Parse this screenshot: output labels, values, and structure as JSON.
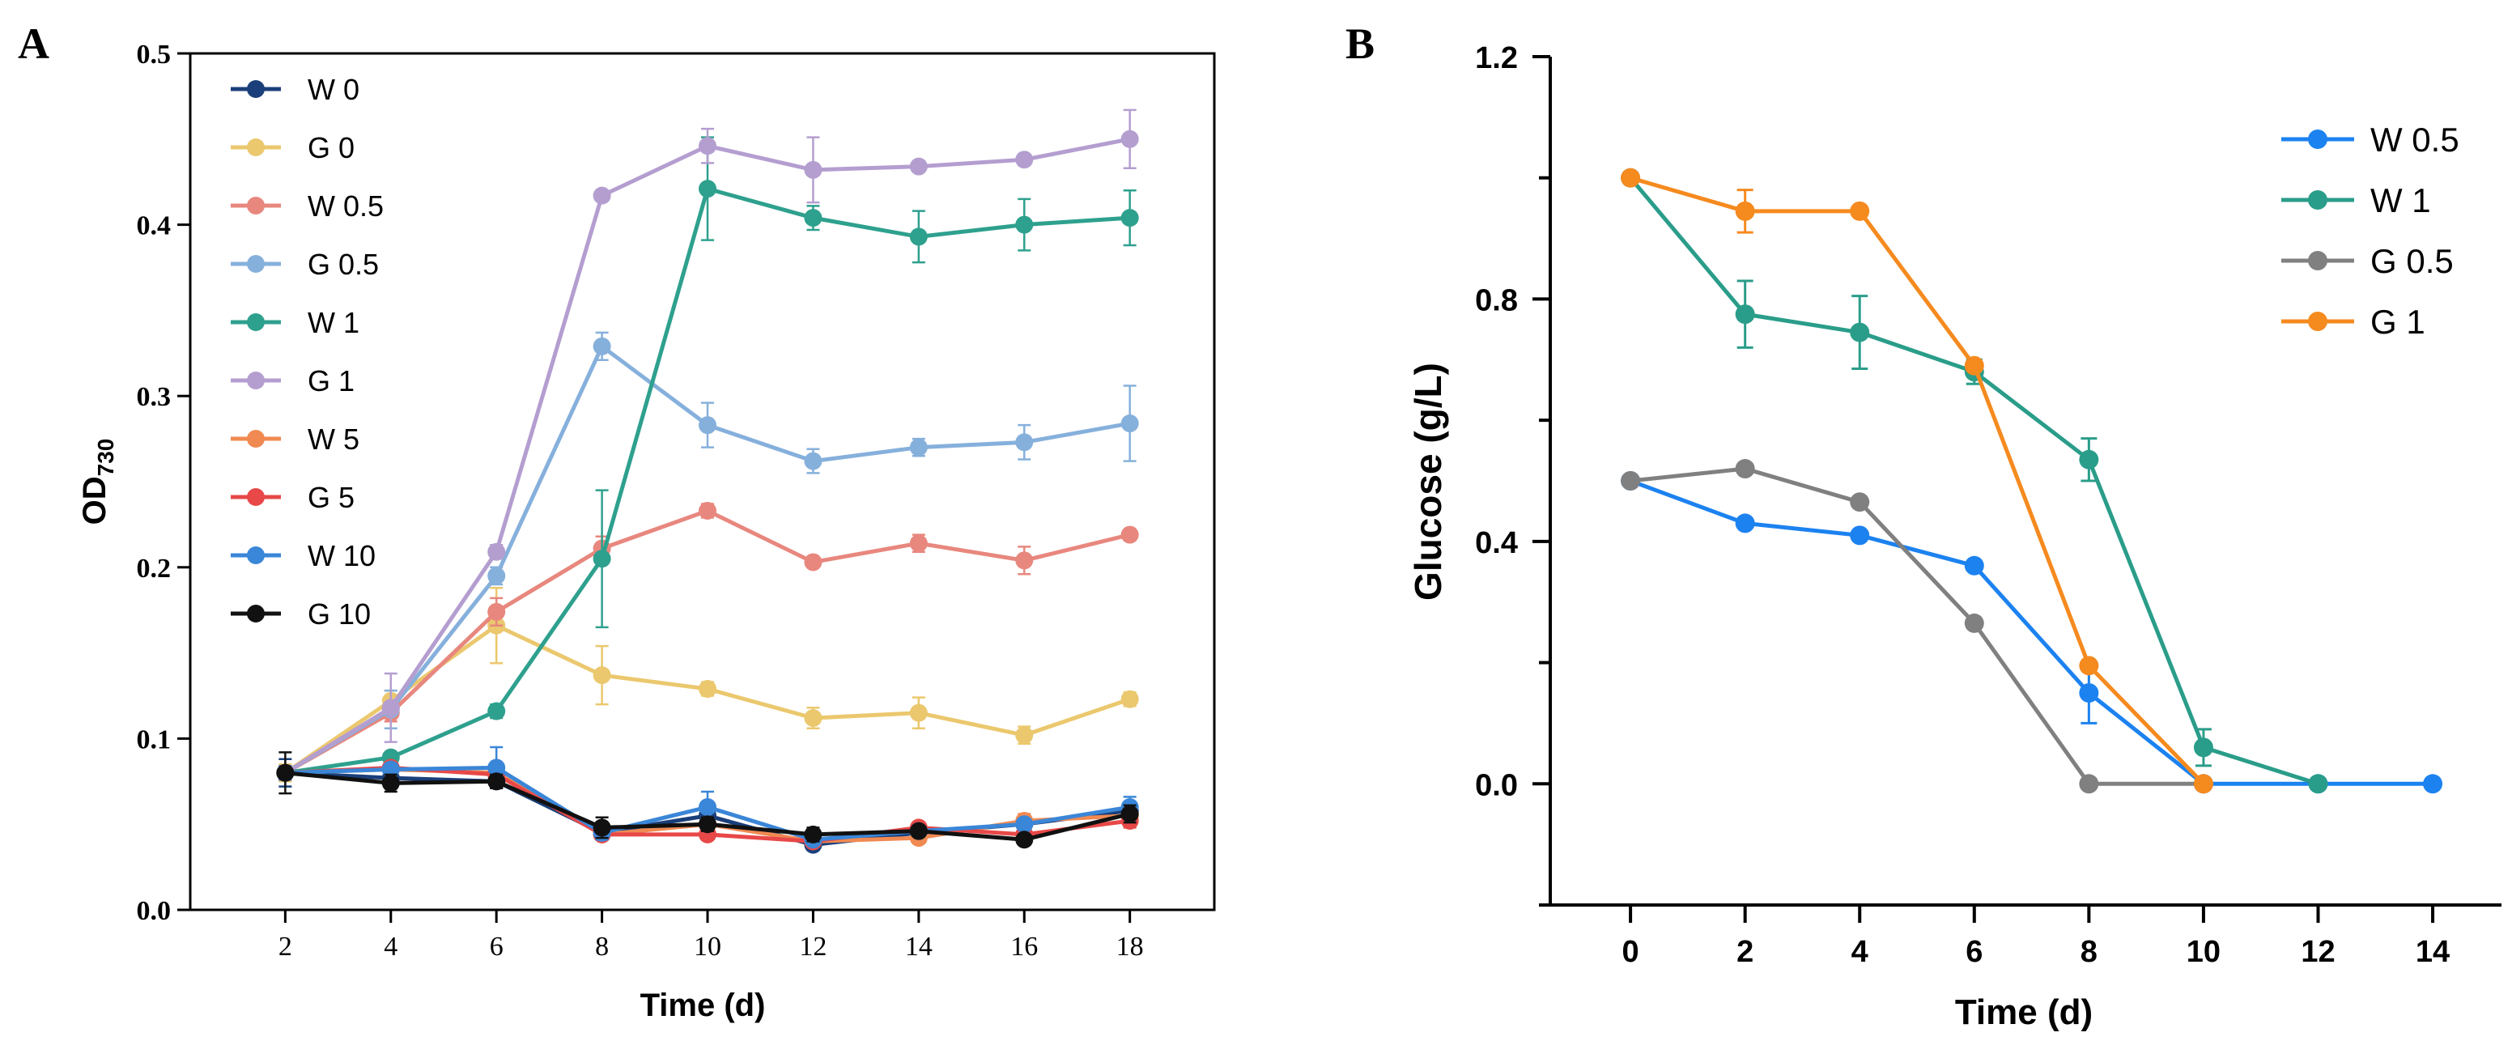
{
  "panels": [
    {
      "label": "A"
    },
    {
      "label": "B"
    }
  ],
  "chart_data": [
    {
      "type": "line",
      "panel": "A",
      "xlabel": "Time (d)",
      "ylabel": "OD",
      "ylabel_subscript": "730",
      "x": [
        2,
        4,
        6,
        8,
        10,
        12,
        14,
        16,
        18
      ],
      "xlim": [
        0.2,
        19.6
      ],
      "ylim": [
        0,
        0.5
      ],
      "xticks": [
        "2",
        "4",
        "6",
        "8",
        "10",
        "12",
        "14",
        "16",
        "18"
      ],
      "yticks": [
        "0.0",
        "0.1",
        "0.2",
        "0.3",
        "0.4",
        "0.5"
      ],
      "ytick_values": [
        0,
        0.1,
        0.2,
        0.3,
        0.4,
        0.5
      ],
      "legend_position": "top-left",
      "series": [
        {
          "name": "W 0",
          "color": "#1a3f7a",
          "values": [
            0.08,
            0.077,
            0.075,
            0.045,
            0.055,
            0.038,
            0.045,
            0.05,
            0.058
          ],
          "errors": [
            0.008,
            0.005,
            0.004,
            0.004,
            0.004,
            0.003,
            0.003,
            0.003,
            0.004
          ]
        },
        {
          "name": "G 0",
          "color": "#ebc86e",
          "values": [
            0.08,
            0.122,
            0.166,
            0.137,
            0.129,
            0.112,
            0.115,
            0.102,
            0.123
          ],
          "errors": [
            0.005,
            0.006,
            0.022,
            0.017,
            0.004,
            0.006,
            0.009,
            0.005,
            0.004
          ]
        },
        {
          "name": "W 0.5",
          "color": "#e8877e",
          "values": [
            0.08,
            0.115,
            0.174,
            0.211,
            0.233,
            0.203,
            0.214,
            0.204,
            0.219
          ],
          "errors": [
            0.004,
            0.005,
            0.008,
            0.007,
            0.004,
            0.003,
            0.005,
            0.008,
            0.003
          ]
        },
        {
          "name": "G 0.5",
          "color": "#86b0dc",
          "values": [
            0.08,
            0.117,
            0.195,
            0.329,
            0.283,
            0.262,
            0.27,
            0.273,
            0.284
          ],
          "errors": [
            0.004,
            0.011,
            0.005,
            0.008,
            0.013,
            0.007,
            0.005,
            0.01,
            0.022
          ]
        },
        {
          "name": "W 1",
          "color": "#2ea08e",
          "values": [
            0.08,
            0.089,
            0.116,
            0.205,
            0.421,
            0.404,
            0.393,
            0.4,
            0.404
          ],
          "errors": [
            0.004,
            0.003,
            0.004,
            0.04,
            0.03,
            0.007,
            0.015,
            0.015,
            0.016
          ]
        },
        {
          "name": "G 1",
          "color": "#b49ed0",
          "values": [
            0.08,
            0.118,
            0.209,
            0.417,
            0.446,
            0.432,
            0.434,
            0.438,
            0.45
          ],
          "errors": [
            0.004,
            0.02,
            0.004,
            0.003,
            0.01,
            0.019,
            0.003,
            0.003,
            0.017
          ]
        },
        {
          "name": "W 5",
          "color": "#f08a52",
          "values": [
            0.08,
            0.082,
            0.08,
            0.044,
            0.05,
            0.04,
            0.042,
            0.052,
            0.055
          ],
          "errors": [
            0.004,
            0.003,
            0.004,
            0.003,
            0.003,
            0.003,
            0.003,
            0.004,
            0.004
          ]
        },
        {
          "name": "G 5",
          "color": "#e84848",
          "values": [
            0.08,
            0.083,
            0.079,
            0.044,
            0.044,
            0.04,
            0.048,
            0.044,
            0.052
          ],
          "errors": [
            0.004,
            0.003,
            0.004,
            0.003,
            0.003,
            0.003,
            0.003,
            0.003,
            0.004
          ]
        },
        {
          "name": "W 10",
          "color": "#3a86d8",
          "values": [
            0.08,
            0.082,
            0.083,
            0.045,
            0.06,
            0.041,
            0.046,
            0.05,
            0.06
          ],
          "errors": [
            0.004,
            0.003,
            0.012,
            0.004,
            0.009,
            0.003,
            0.003,
            0.003,
            0.006
          ]
        },
        {
          "name": "G 10",
          "color": "#111111",
          "values": [
            0.08,
            0.074,
            0.075,
            0.048,
            0.05,
            0.044,
            0.046,
            0.041,
            0.056
          ],
          "errors": [
            0.012,
            0.005,
            0.004,
            0.006,
            0.004,
            0.004,
            0.003,
            0.003,
            0.005
          ]
        }
      ]
    },
    {
      "type": "line",
      "panel": "B",
      "xlabel": "Time (d)",
      "ylabel": "Glucose (g/L)",
      "xlim": [
        -1.4,
        15.2
      ],
      "ylim": [
        -0.2,
        1.2
      ],
      "xticks": [
        "0",
        "2",
        "4",
        "6",
        "8",
        "10",
        "12",
        "14"
      ],
      "xtick_values": [
        0,
        2,
        4,
        6,
        8,
        10,
        12,
        14
      ],
      "yticks": [
        "0.0",
        "0.4",
        "0.8",
        "1.2"
      ],
      "ytick_values": [
        0,
        0.4,
        0.8,
        1.2
      ],
      "legend_position": "top-right",
      "series": [
        {
          "name": "W 0.5",
          "color": "#1c82f0",
          "x": [
            0,
            2,
            4,
            6,
            8,
            10,
            12,
            14
          ],
          "values": [
            0.5,
            0.43,
            0.41,
            0.36,
            0.15,
            0.0,
            0.0,
            0.0
          ],
          "errors": [
            0,
            0,
            0,
            0,
            0.05,
            0,
            0,
            0
          ]
        },
        {
          "name": "W 1",
          "color": "#2a9d8a",
          "x": [
            0,
            2,
            4,
            6,
            8,
            10,
            12
          ],
          "values": [
            1.0,
            0.775,
            0.745,
            0.68,
            0.535,
            0.06,
            0.0
          ],
          "errors": [
            0,
            0.055,
            0.06,
            0.02,
            0.035,
            0.03,
            0
          ]
        },
        {
          "name": "G 0.5",
          "color": "#808080",
          "x": [
            0,
            2,
            4,
            6,
            8,
            10
          ],
          "values": [
            0.5,
            0.52,
            0.465,
            0.265,
            0.0,
            0.0
          ],
          "errors": [
            0,
            0,
            0,
            0,
            0,
            0
          ]
        },
        {
          "name": "G 1",
          "color": "#f58a1f",
          "x": [
            0,
            2,
            4,
            6,
            8,
            10
          ],
          "values": [
            1.0,
            0.945,
            0.945,
            0.69,
            0.195,
            0.0
          ],
          "errors": [
            0,
            0.035,
            0,
            0,
            0,
            0
          ]
        }
      ]
    }
  ]
}
